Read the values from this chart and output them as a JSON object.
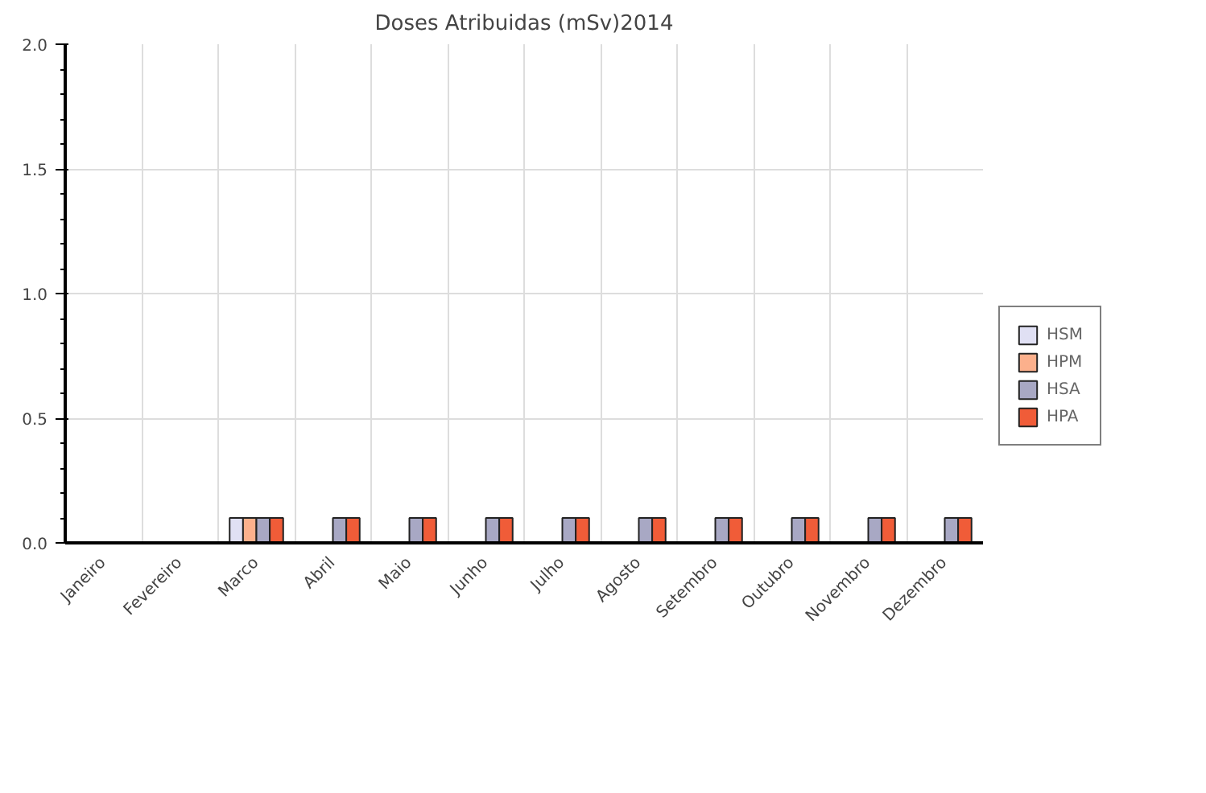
{
  "chart_data": {
    "type": "bar",
    "title": "Doses Atribuidas (mSv)2014",
    "categories": [
      "Janeiro",
      "Fevereiro",
      "Marco",
      "Abril",
      "Maio",
      "Junho",
      "Julho",
      "Agosto",
      "Setembro",
      "Outubro",
      "Novembro",
      "Dezembro"
    ],
    "series": [
      {
        "name": "HSM",
        "color": "#e0e0f4",
        "values": [
          null,
          null,
          0.1,
          null,
          null,
          null,
          null,
          null,
          null,
          null,
          null,
          null
        ]
      },
      {
        "name": "HPM",
        "color": "#fcb08c",
        "values": [
          null,
          null,
          0.1,
          null,
          null,
          null,
          null,
          null,
          null,
          null,
          null,
          null
        ]
      },
      {
        "name": "HSA",
        "color": "#a8a8c4",
        "values": [
          null,
          null,
          0.1,
          0.1,
          0.1,
          0.1,
          0.1,
          0.1,
          0.1,
          0.1,
          0.1,
          0.1
        ]
      },
      {
        "name": "HPA",
        "color": "#f05c38",
        "values": [
          null,
          null,
          0.1,
          0.1,
          0.1,
          0.1,
          0.1,
          0.1,
          0.1,
          0.1,
          0.1,
          0.1
        ]
      }
    ],
    "ylim": [
      0,
      2.0
    ],
    "yticks": [
      {
        "value": 0,
        "label": "0.0"
      },
      {
        "value": 0.5,
        "label": "0.5"
      },
      {
        "value": 1,
        "label": "1.0"
      },
      {
        "value": 1.5,
        "label": "1.5"
      },
      {
        "value": 2,
        "label": "2.0"
      }
    ],
    "grid": true,
    "legend": "right"
  }
}
